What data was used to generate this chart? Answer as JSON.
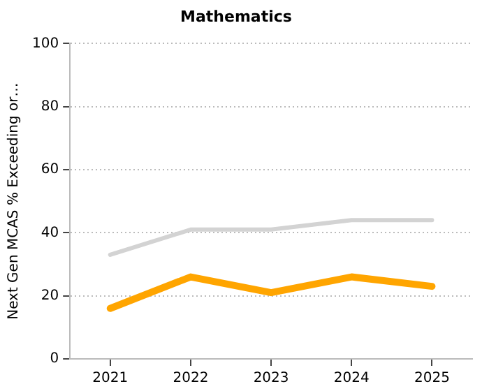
{
  "chart_data": {
    "type": "line",
    "title": "Mathematics",
    "ylabel": "Next Gen MCAS % Exceeding or…",
    "categories": [
      "2021",
      "2022",
      "2023",
      "2024",
      "2025"
    ],
    "series": [
      {
        "color": "#d3d3d3",
        "values": [
          33,
          41,
          41,
          44,
          44
        ]
      },
      {
        "color": "#ffa500",
        "values": [
          16,
          26,
          21,
          26,
          23
        ]
      }
    ],
    "ylim": [
      0,
      100
    ],
    "yticks": [
      0,
      20,
      40,
      60,
      80,
      100
    ],
    "grid": "y",
    "legend": false,
    "marker": "none"
  }
}
